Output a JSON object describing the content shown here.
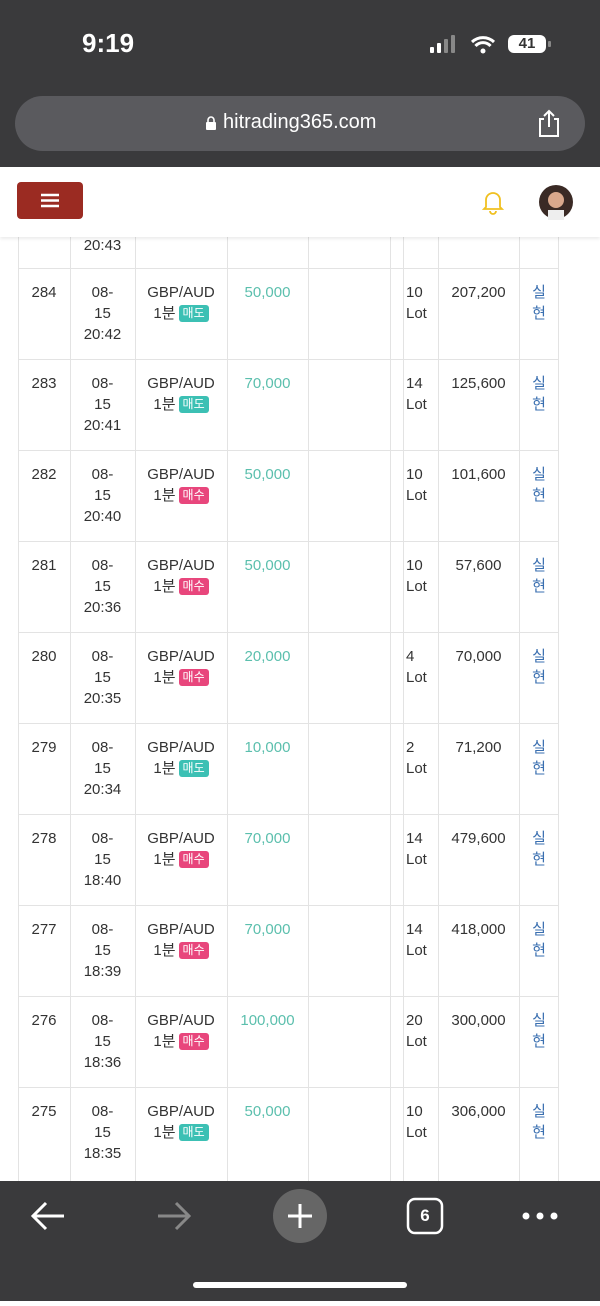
{
  "status_bar": {
    "time": "9:19",
    "battery": "41"
  },
  "browser": {
    "url": "hitrading365.com",
    "tab_count": "6"
  },
  "table": {
    "partial_row": {
      "time": "20:43"
    },
    "rows": [
      {
        "id": "284",
        "date": "08-15",
        "time": "20:42",
        "pair": "GBP/AUD",
        "period": "1분",
        "side": "매도",
        "amount": "50,000",
        "lots": "10 Lot",
        "profit": "207,200",
        "action": "실현"
      },
      {
        "id": "283",
        "date": "08-15",
        "time": "20:41",
        "pair": "GBP/AUD",
        "period": "1분",
        "side": "매도",
        "amount": "70,000",
        "lots": "14 Lot",
        "profit": "125,600",
        "action": "실현"
      },
      {
        "id": "282",
        "date": "08-15",
        "time": "20:40",
        "pair": "GBP/AUD",
        "period": "1분",
        "side": "매수",
        "amount": "50,000",
        "lots": "10 Lot",
        "profit": "101,600",
        "action": "실현"
      },
      {
        "id": "281",
        "date": "08-15",
        "time": "20:36",
        "pair": "GBP/AUD",
        "period": "1분",
        "side": "매수",
        "amount": "50,000",
        "lots": "10 Lot",
        "profit": "57,600",
        "action": "실현"
      },
      {
        "id": "280",
        "date": "08-15",
        "time": "20:35",
        "pair": "GBP/AUD",
        "period": "1분",
        "side": "매수",
        "amount": "20,000",
        "lots": "4 Lot",
        "profit": "70,000",
        "action": "실현"
      },
      {
        "id": "279",
        "date": "08-15",
        "time": "20:34",
        "pair": "GBP/AUD",
        "period": "1분",
        "side": "매도",
        "amount": "10,000",
        "lots": "2 Lot",
        "profit": "71,200",
        "action": "실현"
      },
      {
        "id": "278",
        "date": "08-15",
        "time": "18:40",
        "pair": "GBP/AUD",
        "period": "1분",
        "side": "매수",
        "amount": "70,000",
        "lots": "14 Lot",
        "profit": "479,600",
        "action": "실현"
      },
      {
        "id": "277",
        "date": "08-15",
        "time": "18:39",
        "pair": "GBP/AUD",
        "period": "1분",
        "side": "매수",
        "amount": "70,000",
        "lots": "14 Lot",
        "profit": "418,000",
        "action": "실현"
      },
      {
        "id": "276",
        "date": "08-15",
        "time": "18:36",
        "pair": "GBP/AUD",
        "period": "1분",
        "side": "매수",
        "amount": "100,000",
        "lots": "20 Lot",
        "profit": "300,000",
        "action": "실현"
      },
      {
        "id": "275",
        "date": "08-15",
        "time": "18:35",
        "pair": "GBP/AUD",
        "period": "1분",
        "side": "매도",
        "amount": "50,000",
        "lots": "10 Lot",
        "profit": "306,000",
        "action": "실현"
      }
    ]
  }
}
